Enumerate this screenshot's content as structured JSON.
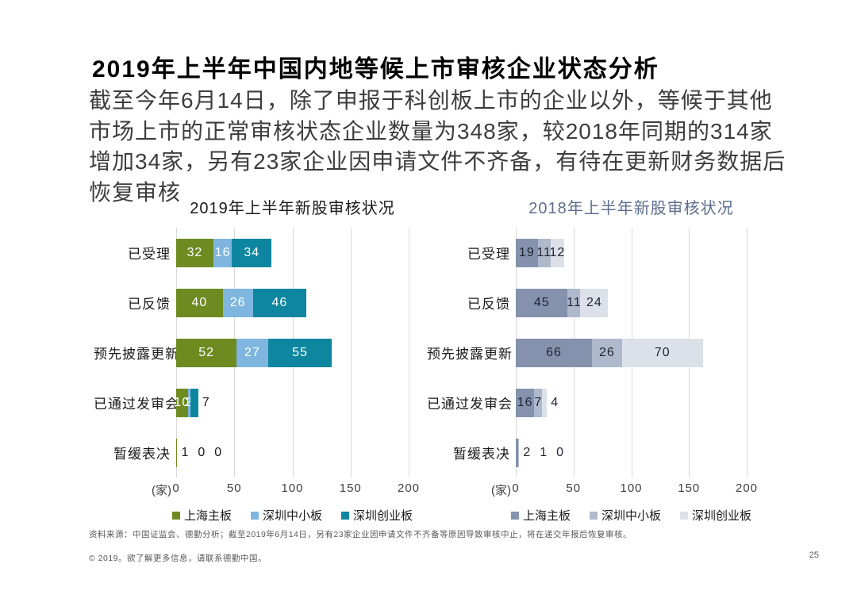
{
  "header": {
    "title": "2019年上半年中国内地等候上市审核企业状态分析",
    "subtitle": "截至今年6月14日，除了申报于科创板上市的企业以外，等候于其他市场上市的正常审核状态企业数量为348家，较2018年同期的314家增加34家，另有23家企业因申请文件不齐备，有待在更新财务数据后恢复审核"
  },
  "chart_data": [
    {
      "type": "bar",
      "orientation": "horizontal",
      "stacked": true,
      "title": "2019年上半年新股审核状况",
      "title_color": "#1a1a1a",
      "categories": [
        "已受理",
        "已反馈",
        "预先披露更新",
        "已通过发审会",
        "暂缓表决"
      ],
      "series": [
        {
          "name": "上海主板",
          "color": "#6e8b21",
          "values": [
            32,
            40,
            52,
            10,
            1
          ]
        },
        {
          "name": "深圳中小板",
          "color": "#7fb6df",
          "values": [
            16,
            26,
            27,
            2,
            0
          ]
        },
        {
          "name": "深圳创业板",
          "color": "#0e86a0",
          "values": [
            34,
            46,
            55,
            7,
            0
          ]
        }
      ],
      "label_inside": [
        [
          true,
          true,
          true
        ],
        [
          true,
          true,
          true
        ],
        [
          true,
          true,
          true
        ],
        [
          true,
          true,
          false
        ],
        [
          false,
          false,
          false
        ]
      ],
      "inside_label_color": "#ffffff",
      "outside_label_color": "#1a1a1a",
      "axis_unit": "(家)",
      "xlim": [
        0,
        200
      ],
      "xticks": [
        0,
        50,
        100,
        150,
        200
      ],
      "grid": true,
      "legend_position": "bottom"
    },
    {
      "type": "bar",
      "orientation": "horizontal",
      "stacked": true,
      "title": "2018年上半年新股审核状况",
      "title_color": "#5d6e8e",
      "categories": [
        "已受理",
        "已反馈",
        "预先披露更新",
        "已通过发审会",
        "暂缓表决"
      ],
      "series": [
        {
          "name": "上海主板",
          "color": "#8492ad",
          "values": [
            19,
            45,
            66,
            16,
            2
          ]
        },
        {
          "name": "深圳中小板",
          "color": "#aeb9cc",
          "values": [
            11,
            11,
            26,
            7,
            1
          ]
        },
        {
          "name": "深圳创业板",
          "color": "#dce0e9",
          "values": [
            12,
            24,
            70,
            4,
            0
          ]
        }
      ],
      "label_inside": [
        [
          true,
          true,
          true
        ],
        [
          true,
          true,
          true
        ],
        [
          true,
          true,
          true
        ],
        [
          true,
          true,
          false
        ],
        [
          false,
          false,
          false
        ]
      ],
      "inside_label_color": "#1f2430",
      "outside_label_color": "#1f2430",
      "axis_unit": "(家)",
      "xlim": [
        0,
        200
      ],
      "xticks": [
        0,
        50,
        100,
        150,
        200
      ],
      "grid": true,
      "legend_position": "bottom"
    }
  ],
  "footer": {
    "source": "资料来源：中国证监会、德勤分析；截至2019年6月14日，另有23家企业因申请文件不齐备等原因导致审核中止，将在递交年报后恢复审核。",
    "copyright": "© 2019。欲了解更多信息，请联系德勤中国。",
    "page_number": "25"
  }
}
